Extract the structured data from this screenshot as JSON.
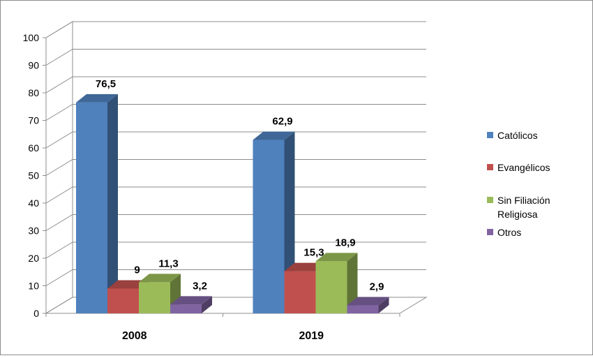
{
  "chart_data": {
    "type": "bar",
    "categories": [
      "2008",
      "2019"
    ],
    "series": [
      {
        "name": "Católicos",
        "values": [
          76.5,
          62.9
        ],
        "labels": [
          "76,5",
          "62,9"
        ],
        "color": "#4f81bd"
      },
      {
        "name": "Evangélicos",
        "values": [
          9,
          15.3
        ],
        "labels": [
          "9",
          "15,3"
        ],
        "color": "#c0504d"
      },
      {
        "name": "Sin Filiación Religiosa",
        "values": [
          11.3,
          18.9
        ],
        "labels": [
          "11,3",
          "18,9"
        ],
        "color": "#9bbb59"
      },
      {
        "name": "Otros",
        "values": [
          3.2,
          2.9
        ],
        "labels": [
          "3,2",
          "2,9"
        ],
        "color": "#8064a2"
      }
    ],
    "legend_lines": [
      [
        "Católicos"
      ],
      [
        "Evangélicos"
      ],
      [
        "Sin Filiación",
        "Religiosa"
      ],
      [
        "Otros"
      ]
    ],
    "yticks": [
      "0",
      "10",
      "20",
      "30",
      "40",
      "50",
      "60",
      "70",
      "80",
      "90",
      "100"
    ],
    "ylim": [
      0,
      100
    ],
    "grid": true,
    "legend_position": "right",
    "style": "3d-clustered-column"
  }
}
